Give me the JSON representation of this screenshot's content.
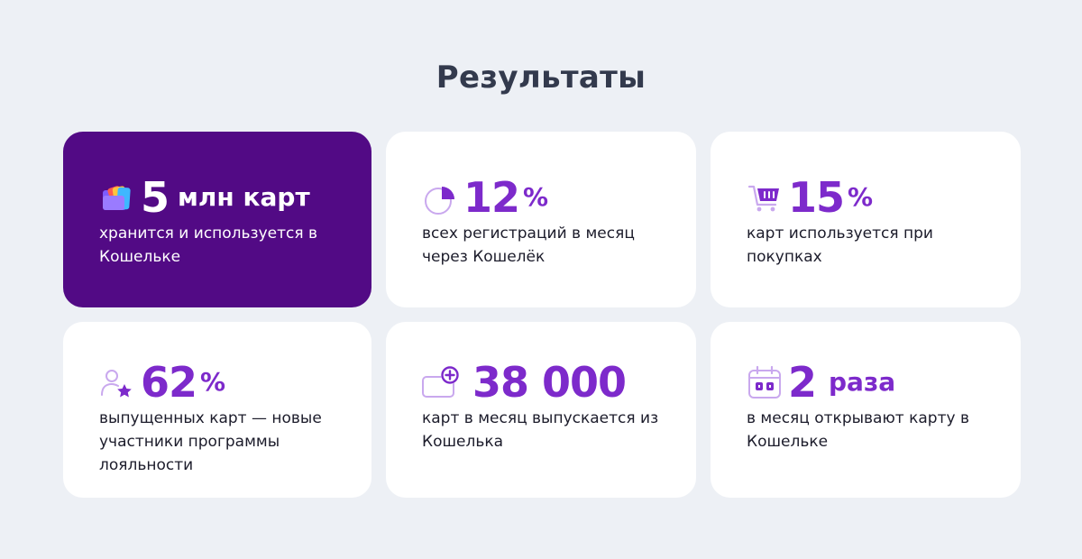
{
  "title": "Результаты",
  "colors": {
    "accent": "#7d2acb",
    "featured_bg": "#520a85",
    "page_bg": "#edf0f5"
  },
  "cards": [
    {
      "icon": "wallet-cards-icon",
      "value": "5",
      "unit": "млн карт",
      "description": "хранится и используется в Кошельке"
    },
    {
      "icon": "pie-chart-icon",
      "value": "12",
      "unit": "%",
      "description": "всех регистраций в месяц через Кошелёк"
    },
    {
      "icon": "shopping-cart-icon",
      "value": "15",
      "unit": "%",
      "description": "карт используется при покупках"
    },
    {
      "icon": "new-user-star-icon",
      "value": "62",
      "unit": "%",
      "description": "выпущенных карт — новые участники программы лояльности"
    },
    {
      "icon": "add-card-icon",
      "value": "38 000",
      "unit": "",
      "description": "карт в месяц выпускается из Кошелька"
    },
    {
      "icon": "calendar-icon",
      "value": "2",
      "unit": "раза",
      "description": "в месяц открывают карту в Кошельке"
    }
  ]
}
